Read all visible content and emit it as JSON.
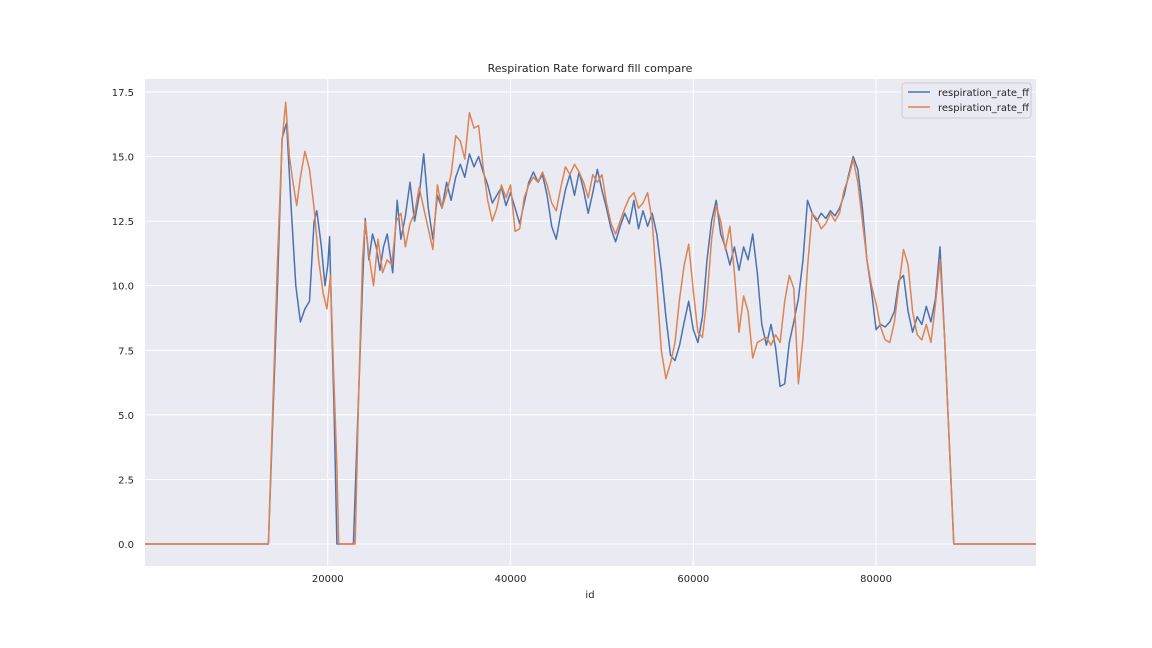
{
  "chart_data": {
    "type": "line",
    "title": "Respiration Rate forward fill compare",
    "xlabel": "id",
    "ylabel": "",
    "xlim": [
      0,
      97500
    ],
    "ylim": [
      -0.85,
      18.0
    ],
    "x_ticks": [
      20000,
      40000,
      60000,
      80000
    ],
    "x_tick_labels": [
      "20000",
      "40000",
      "60000",
      "80000"
    ],
    "y_ticks": [
      0.0,
      2.5,
      5.0,
      7.5,
      10.0,
      12.5,
      15.0,
      17.5
    ],
    "y_tick_labels": [
      "0.0",
      "2.5",
      "5.0",
      "7.5",
      "10.0",
      "12.5",
      "15.0",
      "17.5"
    ],
    "grid": true,
    "legend_position": "top-right",
    "background": "#eaeaf2",
    "series": [
      {
        "name": "respiration_rate_ff",
        "color": "#4c72b0",
        "points": [
          [
            0,
            0
          ],
          [
            13500,
            0
          ],
          [
            14500,
            10
          ],
          [
            15000,
            15.7
          ],
          [
            15500,
            16.3
          ],
          [
            16000,
            13
          ],
          [
            16500,
            10
          ],
          [
            17000,
            8.6
          ],
          [
            17500,
            9.1
          ],
          [
            18000,
            9.4
          ],
          [
            18500,
            12.5
          ],
          [
            18800,
            12.9
          ],
          [
            19300,
            11.5
          ],
          [
            19700,
            10
          ],
          [
            20000,
            10.8
          ],
          [
            20200,
            11.9
          ],
          [
            20400,
            9
          ],
          [
            20700,
            5
          ],
          [
            21000,
            0
          ],
          [
            22800,
            0
          ],
          [
            23300,
            5
          ],
          [
            23800,
            10
          ],
          [
            24100,
            12.6
          ],
          [
            24500,
            11
          ],
          [
            24900,
            12
          ],
          [
            25300,
            11.5
          ],
          [
            25700,
            10.6
          ],
          [
            26100,
            11.5
          ],
          [
            26500,
            12
          ],
          [
            27100,
            10.5
          ],
          [
            27600,
            13.3
          ],
          [
            28000,
            11.8
          ],
          [
            28500,
            12.7
          ],
          [
            29000,
            14
          ],
          [
            29500,
            12.5
          ],
          [
            30000,
            13.5
          ],
          [
            30500,
            15.1
          ],
          [
            31000,
            13
          ],
          [
            31500,
            11.8
          ],
          [
            32000,
            13.5
          ],
          [
            32500,
            13
          ],
          [
            33000,
            14
          ],
          [
            33500,
            13.3
          ],
          [
            34000,
            14.2
          ],
          [
            34500,
            14.7
          ],
          [
            35000,
            14.2
          ],
          [
            35500,
            15.1
          ],
          [
            36000,
            14.6
          ],
          [
            36500,
            15
          ],
          [
            37000,
            14.4
          ],
          [
            37500,
            13.9
          ],
          [
            38000,
            13.2
          ],
          [
            38500,
            13.5
          ],
          [
            39000,
            13.8
          ],
          [
            39500,
            13.1
          ],
          [
            40000,
            13.6
          ],
          [
            40500,
            13
          ],
          [
            41000,
            12.4
          ],
          [
            41500,
            13.2
          ],
          [
            42000,
            14
          ],
          [
            42500,
            14.4
          ],
          [
            43000,
            14
          ],
          [
            43500,
            14.3
          ],
          [
            44000,
            13.5
          ],
          [
            44500,
            12.3
          ],
          [
            45000,
            11.8
          ],
          [
            45500,
            12.8
          ],
          [
            46000,
            13.7
          ],
          [
            46500,
            14.3
          ],
          [
            47000,
            13.5
          ],
          [
            47500,
            14.4
          ],
          [
            48000,
            13.7
          ],
          [
            48500,
            12.8
          ],
          [
            49000,
            13.6
          ],
          [
            49500,
            14.5
          ],
          [
            50000,
            13.7
          ],
          [
            50500,
            13
          ],
          [
            51000,
            12.2
          ],
          [
            51500,
            11.7
          ],
          [
            52000,
            12.3
          ],
          [
            52500,
            12.8
          ],
          [
            53000,
            12.4
          ],
          [
            53500,
            13.3
          ],
          [
            54000,
            12.2
          ],
          [
            54500,
            12.9
          ],
          [
            55000,
            12.3
          ],
          [
            55500,
            12.8
          ],
          [
            56000,
            12
          ],
          [
            56500,
            10.6
          ],
          [
            57000,
            8.8
          ],
          [
            57500,
            7.3
          ],
          [
            58000,
            7.1
          ],
          [
            58500,
            7.7
          ],
          [
            59000,
            8.6
          ],
          [
            59500,
            9.4
          ],
          [
            60000,
            8.3
          ],
          [
            60500,
            7.8
          ],
          [
            61000,
            8.8
          ],
          [
            61500,
            11
          ],
          [
            62000,
            12.5
          ],
          [
            62500,
            13.3
          ],
          [
            63000,
            12
          ],
          [
            63500,
            11.5
          ],
          [
            64000,
            10.8
          ],
          [
            64500,
            11.5
          ],
          [
            65000,
            10.6
          ],
          [
            65500,
            11.5
          ],
          [
            66000,
            11
          ],
          [
            66500,
            12
          ],
          [
            67000,
            10.5
          ],
          [
            67500,
            8.5
          ],
          [
            68000,
            7.7
          ],
          [
            68500,
            8.5
          ],
          [
            69000,
            7.6
          ],
          [
            69500,
            6.1
          ],
          [
            70000,
            6.2
          ],
          [
            70500,
            7.8
          ],
          [
            71000,
            8.6
          ],
          [
            71500,
            9.5
          ],
          [
            72000,
            11
          ],
          [
            72500,
            13.3
          ],
          [
            73000,
            12.8
          ],
          [
            73500,
            12.5
          ],
          [
            74000,
            12.8
          ],
          [
            74500,
            12.6
          ],
          [
            75000,
            12.9
          ],
          [
            75500,
            12.7
          ],
          [
            76000,
            13
          ],
          [
            76500,
            13.5
          ],
          [
            77000,
            14.3
          ],
          [
            77500,
            15
          ],
          [
            78000,
            14.5
          ],
          [
            78500,
            13
          ],
          [
            79000,
            11
          ],
          [
            79500,
            9.8
          ],
          [
            80000,
            8.3
          ],
          [
            80500,
            8.5
          ],
          [
            81000,
            8.4
          ],
          [
            81500,
            8.6
          ],
          [
            82000,
            9
          ],
          [
            82500,
            10.2
          ],
          [
            83000,
            10.4
          ],
          [
            83500,
            9
          ],
          [
            84000,
            8.2
          ],
          [
            84500,
            8.8
          ],
          [
            85000,
            8.5
          ],
          [
            85500,
            9.2
          ],
          [
            86000,
            8.6
          ],
          [
            86500,
            9.5
          ],
          [
            87000,
            11.5
          ],
          [
            87500,
            8
          ],
          [
            88000,
            4
          ],
          [
            88500,
            0
          ],
          [
            97500,
            0
          ]
        ]
      },
      {
        "name": "respiration_rate_ff",
        "color": "#dd8452",
        "points": [
          [
            0,
            0
          ],
          [
            13500,
            0
          ],
          [
            14500,
            11
          ],
          [
            15000,
            15.6
          ],
          [
            15400,
            17.1
          ],
          [
            15800,
            15
          ],
          [
            16200,
            14
          ],
          [
            16600,
            13.1
          ],
          [
            17000,
            14.2
          ],
          [
            17500,
            15.2
          ],
          [
            18000,
            14.5
          ],
          [
            18500,
            13
          ],
          [
            19000,
            11
          ],
          [
            19500,
            9.7
          ],
          [
            19900,
            9.1
          ],
          [
            20300,
            10.4
          ],
          [
            20600,
            7
          ],
          [
            21000,
            3
          ],
          [
            21200,
            0
          ],
          [
            23000,
            0
          ],
          [
            23400,
            6
          ],
          [
            23800,
            11
          ],
          [
            24100,
            12.5
          ],
          [
            24500,
            11.2
          ],
          [
            25000,
            10
          ],
          [
            25500,
            11.8
          ],
          [
            26000,
            10.5
          ],
          [
            26500,
            11
          ],
          [
            27000,
            10.8
          ],
          [
            27500,
            12.5
          ],
          [
            28000,
            12.8
          ],
          [
            28500,
            11.5
          ],
          [
            29000,
            12.4
          ],
          [
            29500,
            12.8
          ],
          [
            30000,
            13.8
          ],
          [
            30500,
            13
          ],
          [
            31000,
            12.2
          ],
          [
            31500,
            11.4
          ],
          [
            32000,
            13.9
          ],
          [
            32500,
            13
          ],
          [
            33000,
            13.6
          ],
          [
            33500,
            14.3
          ],
          [
            34000,
            15.8
          ],
          [
            34500,
            15.6
          ],
          [
            35000,
            14.9
          ],
          [
            35500,
            16.7
          ],
          [
            36000,
            16.1
          ],
          [
            36500,
            16.2
          ],
          [
            37000,
            14.6
          ],
          [
            37500,
            13.3
          ],
          [
            38000,
            12.5
          ],
          [
            38500,
            13
          ],
          [
            39000,
            13.9
          ],
          [
            39500,
            13.4
          ],
          [
            40000,
            13.9
          ],
          [
            40500,
            12.1
          ],
          [
            41000,
            12.2
          ],
          [
            41500,
            13.4
          ],
          [
            42000,
            13.9
          ],
          [
            42500,
            14.2
          ],
          [
            43000,
            14
          ],
          [
            43500,
            14.4
          ],
          [
            44000,
            13.9
          ],
          [
            44500,
            13.2
          ],
          [
            45000,
            12.9
          ],
          [
            45500,
            13.8
          ],
          [
            46000,
            14.6
          ],
          [
            46500,
            14.3
          ],
          [
            47000,
            14.7
          ],
          [
            47500,
            14.4
          ],
          [
            48000,
            14
          ],
          [
            48500,
            13.4
          ],
          [
            49000,
            14.3
          ],
          [
            49500,
            14
          ],
          [
            50000,
            14.3
          ],
          [
            50500,
            13.2
          ],
          [
            51000,
            12.4
          ],
          [
            51500,
            12
          ],
          [
            52000,
            12.5
          ],
          [
            52500,
            13
          ],
          [
            53000,
            13.4
          ],
          [
            53500,
            13.6
          ],
          [
            54000,
            13
          ],
          [
            54500,
            13.2
          ],
          [
            55000,
            13.6
          ],
          [
            55500,
            12.5
          ],
          [
            56000,
            10
          ],
          [
            56500,
            7.5
          ],
          [
            57000,
            6.4
          ],
          [
            57500,
            7
          ],
          [
            58000,
            7.8
          ],
          [
            58500,
            9.5
          ],
          [
            59000,
            10.8
          ],
          [
            59500,
            11.6
          ],
          [
            60000,
            9.8
          ],
          [
            60500,
            8.2
          ],
          [
            61000,
            8
          ],
          [
            61500,
            9.5
          ],
          [
            62000,
            11.8
          ],
          [
            62500,
            13.1
          ],
          [
            63000,
            12.5
          ],
          [
            63500,
            11.4
          ],
          [
            64000,
            12.3
          ],
          [
            64500,
            10.5
          ],
          [
            65000,
            8.2
          ],
          [
            65500,
            9.6
          ],
          [
            66000,
            9
          ],
          [
            66500,
            7.2
          ],
          [
            67000,
            7.8
          ],
          [
            67500,
            7.9
          ],
          [
            68000,
            8
          ],
          [
            68500,
            7.7
          ],
          [
            69000,
            8.1
          ],
          [
            69500,
            7.8
          ],
          [
            70000,
            9.4
          ],
          [
            70500,
            10.4
          ],
          [
            71000,
            9.9
          ],
          [
            71500,
            6.2
          ],
          [
            72000,
            8
          ],
          [
            72500,
            10.7
          ],
          [
            73000,
            12.8
          ],
          [
            73500,
            12.6
          ],
          [
            74000,
            12.2
          ],
          [
            74500,
            12.4
          ],
          [
            75000,
            12.8
          ],
          [
            75500,
            12.5
          ],
          [
            76000,
            12.8
          ],
          [
            76500,
            13.7
          ],
          [
            77000,
            14.2
          ],
          [
            77500,
            14.9
          ],
          [
            78000,
            14
          ],
          [
            78500,
            12.5
          ],
          [
            79000,
            11
          ],
          [
            79500,
            10
          ],
          [
            80000,
            9.3
          ],
          [
            80500,
            8.4
          ],
          [
            81000,
            7.9
          ],
          [
            81500,
            7.8
          ],
          [
            82000,
            8.6
          ],
          [
            82500,
            10
          ],
          [
            83000,
            11.4
          ],
          [
            83500,
            10.8
          ],
          [
            84000,
            9
          ],
          [
            84500,
            8.1
          ],
          [
            85000,
            7.9
          ],
          [
            85500,
            8.5
          ],
          [
            86000,
            7.8
          ],
          [
            86500,
            9.3
          ],
          [
            87000,
            11
          ],
          [
            87500,
            8
          ],
          [
            88000,
            4
          ],
          [
            88500,
            0
          ],
          [
            97500,
            0
          ]
        ]
      }
    ]
  }
}
